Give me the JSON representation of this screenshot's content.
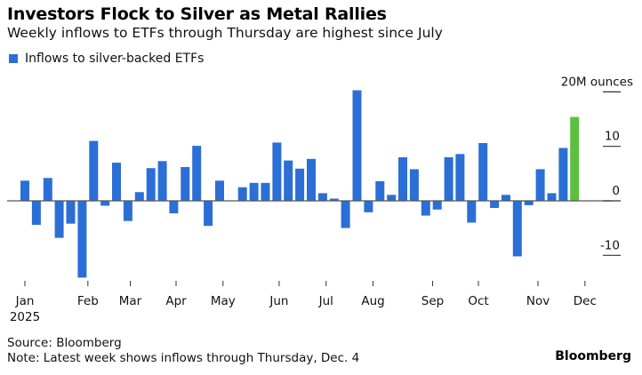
{
  "header": {
    "title": "Investors Flock to Silver as Metal Rallies",
    "subtitle": "Weekly inflows to ETFs through Thursday are highest since July"
  },
  "footer": {
    "source": "Source: Bloomberg",
    "note": "Note: Latest week shows inflows through Thursday, Dec. 4",
    "brand": "Bloomberg"
  },
  "colors": {
    "bar": "#2b6fd6",
    "latest": "#5cbf40",
    "zero_line": "#555555",
    "tick": "#333333"
  },
  "chart_data": {
    "type": "bar",
    "title": "Investors Flock to Silver as Metal Rallies",
    "subtitle": "Weekly inflows to ETFs through Thursday are highest since July",
    "xlabel": "",
    "ylabel": "20M ounces",
    "unit_label": "20M ounces",
    "legend": [
      {
        "name": "Inflows to silver-backed ETFs",
        "color": "#2b6fd6"
      }
    ],
    "legend_position": "top-left",
    "ylim": [
      -14.5,
      21
    ],
    "yticks": [
      {
        "value": 20,
        "label": "20M ounces"
      },
      {
        "value": 10,
        "label": "10"
      },
      {
        "value": 0,
        "label": "0"
      },
      {
        "value": -10,
        "label": "-10"
      }
    ],
    "y_axis_side": "right",
    "grid": false,
    "xticks": [
      {
        "label": "Jan",
        "sublabel": "2025",
        "week": 0
      },
      {
        "label": "Feb",
        "week": 5.5
      },
      {
        "label": "Mar",
        "week": 9.2
      },
      {
        "label": "Apr",
        "week": 13.2
      },
      {
        "label": "May",
        "week": 17.3
      },
      {
        "label": "Jun",
        "week": 22.2
      },
      {
        "label": "Jul",
        "week": 26.3
      },
      {
        "label": "Aug",
        "week": 30.4
      },
      {
        "label": "Sep",
        "week": 35.6
      },
      {
        "label": "Oct",
        "week": 39.6
      },
      {
        "label": "Nov",
        "week": 44.8
      },
      {
        "label": "Dec",
        "week": 48.9
      }
    ],
    "series": [
      {
        "name": "Inflows to silver-backed ETFs",
        "values": [
          3.7,
          -4.4,
          4.2,
          -6.8,
          -4.2,
          -14.1,
          11.0,
          -0.9,
          7.0,
          -3.7,
          1.6,
          6.0,
          7.3,
          -2.3,
          6.2,
          10.1,
          -4.6,
          3.7,
          0.0,
          2.5,
          3.3,
          3.3,
          10.7,
          7.4,
          5.9,
          7.7,
          1.4,
          0.4,
          -5.0,
          20.3,
          -2.1,
          3.6,
          1.1,
          8.0,
          5.8,
          -2.7,
          -1.6,
          8.0,
          8.6,
          -4.0,
          10.6,
          -1.3,
          1.1,
          -10.2,
          -0.8,
          5.8,
          1.4,
          9.7,
          15.4
        ],
        "highlight_last": true
      }
    ]
  }
}
